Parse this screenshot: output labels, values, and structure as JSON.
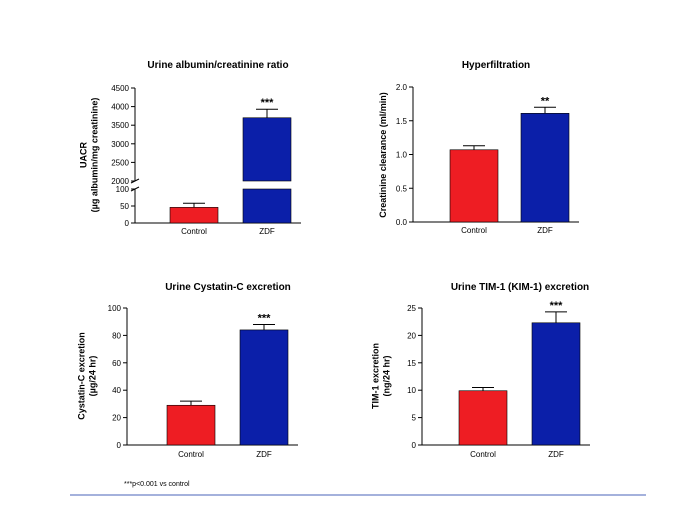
{
  "colors": {
    "control": "#ee1d23",
    "zdf": "#0b1fa9",
    "divider": "#4a63b8"
  },
  "footnote": "***p<0.001 vs control",
  "chart_data": [
    {
      "type": "bar",
      "title": "Urine albumin/creatinine ratio",
      "ylabel": [
        "UACR",
        "(µg albumin/mg creatinine)"
      ],
      "categories": [
        "Control",
        "ZDF"
      ],
      "values": [
        46,
        3700
      ],
      "errors": [
        12,
        230
      ],
      "significance": [
        "",
        "***"
      ],
      "axis_break": {
        "lower": [
          0,
          100
        ],
        "upper": [
          2000,
          4500
        ]
      },
      "yticks": [
        0,
        50,
        100,
        2000,
        2500,
        3000,
        3500,
        4000,
        4500
      ]
    },
    {
      "type": "bar",
      "title": "Hyperfiltration",
      "ylabel": [
        "Creatinine clearance (ml/min)"
      ],
      "categories": [
        "Control",
        "ZDF"
      ],
      "values": [
        1.07,
        1.61
      ],
      "errors": [
        0.06,
        0.09
      ],
      "significance": [
        "",
        "**"
      ],
      "ylim": [
        0,
        2
      ],
      "yticks": [
        "0.0",
        "0.5",
        "1.0",
        "1.5",
        "2.0"
      ]
    },
    {
      "type": "bar",
      "title": "Urine Cystatin-C excretion",
      "ylabel": [
        "Cystatin-C excretion",
        "(µg/24 hr)"
      ],
      "categories": [
        "Control",
        "ZDF"
      ],
      "values": [
        29,
        84
      ],
      "errors": [
        3,
        4
      ],
      "significance": [
        "",
        "***"
      ],
      "ylim": [
        0,
        100
      ],
      "yticks": [
        "0",
        "20",
        "40",
        "60",
        "80",
        "100"
      ]
    },
    {
      "type": "bar",
      "title": "Urine TIM-1 (KIM-1) excretion",
      "ylabel": [
        "TIM-1 excretion",
        "(ng/24 hr)"
      ],
      "categories": [
        "Control",
        "ZDF"
      ],
      "values": [
        9.9,
        22.3
      ],
      "errors": [
        0.6,
        2
      ],
      "significance": [
        "",
        "***"
      ],
      "ylim": [
        0,
        25
      ],
      "yticks": [
        "0",
        "5",
        "10",
        "15",
        "20",
        "25"
      ]
    }
  ]
}
